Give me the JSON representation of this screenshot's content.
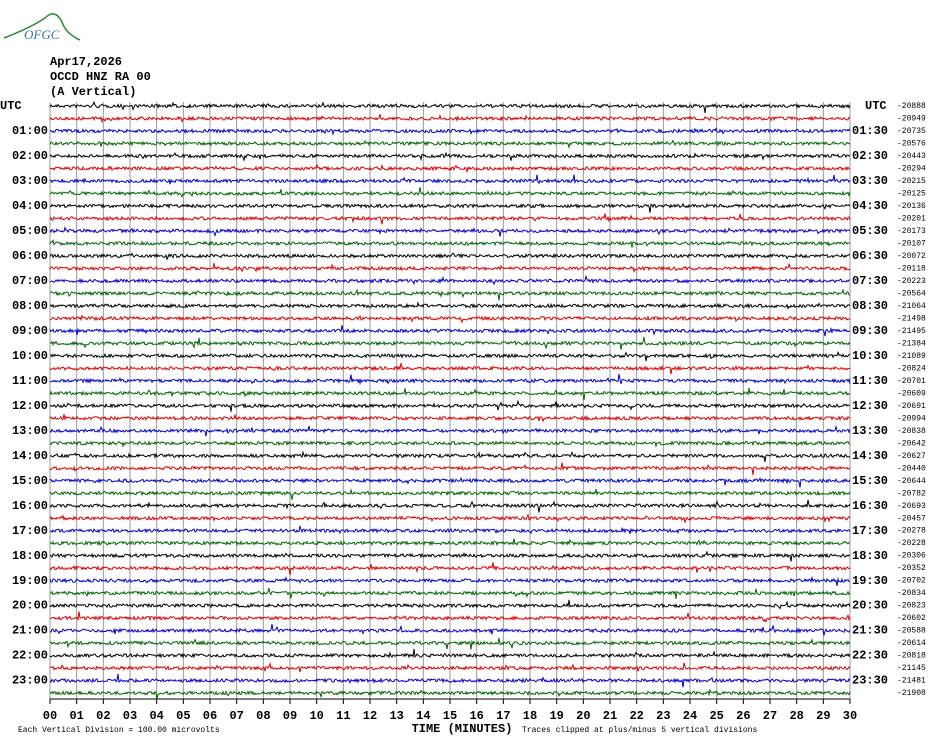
{
  "logo": "OFGC",
  "header": {
    "date": "Apr17,2026",
    "station": "OCCD HNZ RA 00",
    "component": "(A Vertical)"
  },
  "left_labels": [
    "UTC",
    "01:00",
    "02:00",
    "03:00",
    "04:00",
    "05:00",
    "06:00",
    "07:00",
    "08:00",
    "09:00",
    "10:00",
    "11:00",
    "12:00",
    "13:00",
    "14:00",
    "15:00",
    "16:00",
    "17:00",
    "18:00",
    "19:00",
    "20:00",
    "21:00",
    "22:00",
    "23:00"
  ],
  "right_labels": [
    "UTC",
    "01:30",
    "02:30",
    "03:30",
    "04:30",
    "05:30",
    "06:30",
    "07:30",
    "08:30",
    "09:30",
    "10:30",
    "11:30",
    "12:30",
    "13:30",
    "14:30",
    "15:30",
    "16:30",
    "17:30",
    "18:30",
    "19:30",
    "20:30",
    "21:30",
    "22:30",
    "23:30"
  ],
  "offsets": [
    -20888,
    -20949,
    -20735,
    -20576,
    -20443,
    -20294,
    -20215,
    -20125,
    -20136,
    -20201,
    -20173,
    -20107,
    -20072,
    -20118,
    -20223,
    -20564,
    -21064,
    -21498,
    -21495,
    -21384,
    -21089,
    -20824,
    -20701,
    -20609,
    -20691,
    -20994,
    -20838,
    -20642,
    -20627,
    -20440,
    -20644,
    -20782,
    -20693,
    -20457,
    -20278,
    -20228,
    -20306,
    -20352,
    -20702,
    -20834,
    -20823,
    -20602,
    -20588,
    -20614,
    -20818,
    -21145,
    -21481,
    -21908
  ],
  "x_ticks": [
    "00",
    "01",
    "02",
    "03",
    "04",
    "05",
    "06",
    "07",
    "08",
    "09",
    "10",
    "11",
    "12",
    "13",
    "14",
    "15",
    "16",
    "17",
    "18",
    "19",
    "20",
    "21",
    "22",
    "23",
    "24",
    "25",
    "26",
    "27",
    "28",
    "29",
    "30"
  ],
  "footer": {
    "scale": "Each Vertical Division =  100.00 microvolts",
    "x_title": "TIME (MINUTES)",
    "clip": "Traces clipped at plus/minus 5 vertical divisions"
  }
}
